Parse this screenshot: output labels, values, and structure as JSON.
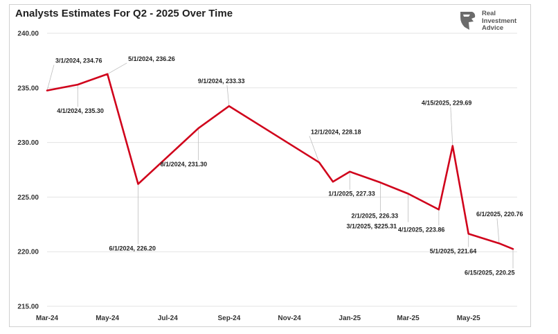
{
  "brand": {
    "name": "Real Investment Advice",
    "logo_icon": "eagle-head-icon",
    "color": "#6b6b6b"
  },
  "chart_data": {
    "type": "line",
    "title": "Analysts Estimates For Q2 - 2025 Over Time",
    "xlabel": "",
    "ylabel": "",
    "x_axis_type": "date",
    "xlim": [
      "2024-03-01",
      "2025-06-15"
    ],
    "ylim": [
      215,
      240
    ],
    "y_ticks": [
      215,
      220,
      225,
      230,
      235,
      240
    ],
    "y_tick_labels": [
      "215.00",
      "220.00",
      "225.00",
      "230.00",
      "235.00",
      "240.00"
    ],
    "x_ticks": [
      "2024-03-01",
      "2024-05-01",
      "2024-07-01",
      "2024-09-01",
      "2024-11-01",
      "2025-01-01",
      "2025-03-01",
      "2025-05-01"
    ],
    "x_tick_labels": [
      "Mar-24",
      "May-24",
      "Jul-24",
      "Sep-24",
      "Nov-24",
      "Jan-25",
      "Mar-25",
      "May-25"
    ],
    "grid": {
      "horizontal": true,
      "vertical": false
    },
    "line_color": "#d0021b",
    "gridline_color": "#e3e3e3",
    "label_leader_color": "#bdbdbd",
    "series": [
      {
        "points": [
          {
            "date": "2024-03-01",
            "value": 234.76,
            "label": "3/1/2024,  234.76"
          },
          {
            "date": "2024-04-01",
            "value": 235.3,
            "label": "4/1/2024,  235.30"
          },
          {
            "date": "2024-05-01",
            "value": 236.26,
            "label": "5/1/2024,  236.26"
          },
          {
            "date": "2024-06-01",
            "value": 226.2,
            "label": "6/1/2024, 226.20"
          },
          {
            "date": "2024-08-01",
            "value": 231.3,
            "label": "8/1/2024,  231.30"
          },
          {
            "date": "2024-09-01",
            "value": 233.33,
            "label": "9/1/2024,  233.33"
          },
          {
            "date": "2024-12-01",
            "value": 228.18,
            "label": "12/1/2024,  228.18"
          },
          {
            "date": "2024-12-15",
            "value": 226.4,
            "label": ""
          },
          {
            "date": "2025-01-01",
            "value": 227.33,
            "label": "1/1/2025,  227.33"
          },
          {
            "date": "2025-02-01",
            "value": 226.33,
            "label": "2/1/2025,  226.33"
          },
          {
            "date": "2025-03-01",
            "value": 225.31,
            "label": "3/1/2025, $225.31"
          },
          {
            "date": "2025-04-01",
            "value": 223.86,
            "label": "4/1/2025,  223.86"
          },
          {
            "date": "2025-04-15",
            "value": 229.69,
            "label": "4/15/2025,  229.69"
          },
          {
            "date": "2025-05-01",
            "value": 221.64,
            "label": "5/1/2025,  221.64"
          },
          {
            "date": "2025-06-01",
            "value": 220.76,
            "label": "6/1/2025,  220.76"
          },
          {
            "date": "2025-06-15",
            "value": 220.25,
            "label": "6/15/2025,  220.25"
          }
        ]
      }
    ]
  }
}
